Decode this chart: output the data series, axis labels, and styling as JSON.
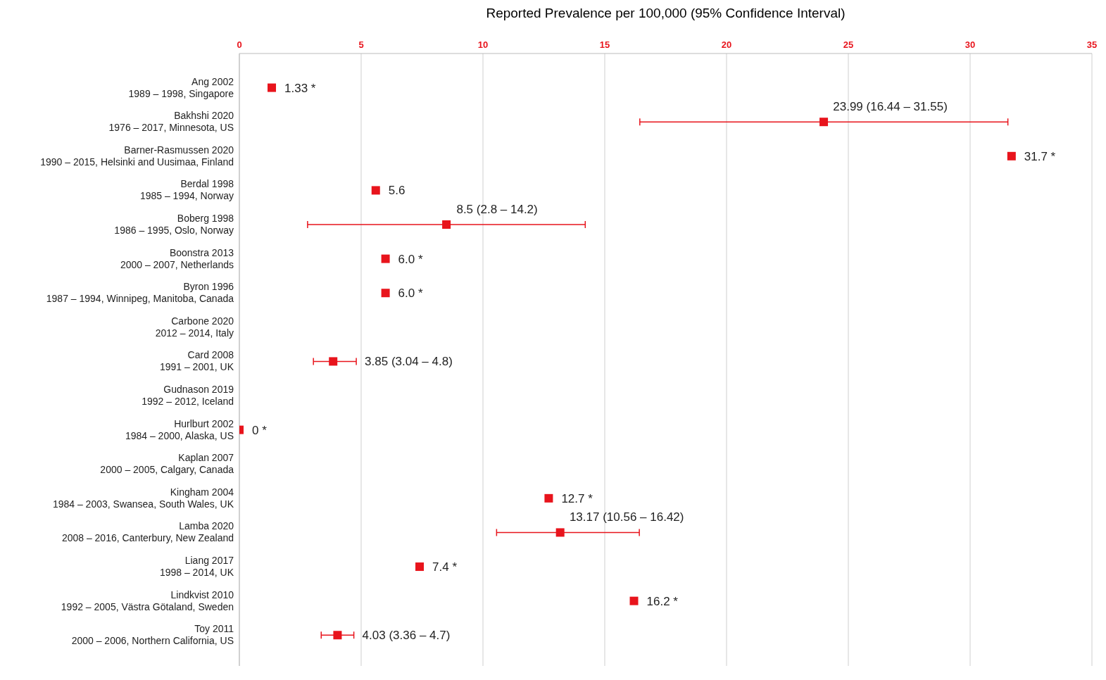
{
  "chart_data": {
    "type": "scatter",
    "orientation": "horizontal",
    "title": "Reported Prevalence per 100,000 (95% Confidence Interval)",
    "categories": [
      "Ang 2002\n1989 – 1998, Singapore",
      "Bakhshi 2020\n1976 – 2017, Minnesota, US",
      "Barner-Rasmussen 2020\n1990 – 2015, Helsinki and Uusimaa, Finland",
      "Berdal 1998\n1985 – 1994, Norway",
      "Boberg 1998\n1986 – 1995, Oslo, Norway",
      "Boonstra 2013\n2000 – 2007, Netherlands",
      "Byron 1996\n1987 – 1994, Winnipeg, Manitoba, Canada",
      "Carbone 2020\n2012 – 2014, Italy",
      "Card 2008\n1991 – 2001, UK",
      "Gudnason 2019\n1992 – 2012, Iceland",
      "Hurlburt 2002\n1984 – 2000, Alaska, US",
      "Kaplan 2007\n2000 – 2005, Calgary, Canada",
      "Kingham 2004\n1984 – 2003, Swansea, South Wales, UK",
      "Lamba 2020\n2008 – 2016, Canterbury, New Zealand",
      "Liang 2017\n1998 – 2014, UK",
      "Lindkvist 2010\n1992 – 2005, Västra Götaland, Sweden",
      "Toy 2011\n2000 – 2006, Northern California, US"
    ],
    "values": [
      1.33,
      23.99,
      31.7,
      5.6,
      8.5,
      6.0,
      6.0,
      null,
      3.85,
      null,
      0,
      null,
      12.7,
      13.17,
      7.4,
      16.2,
      4.03
    ],
    "errors": [
      null,
      [
        16.44,
        31.55
      ],
      null,
      null,
      [
        2.8,
        14.2
      ],
      null,
      null,
      null,
      [
        3.04,
        4.8
      ],
      null,
      null,
      null,
      null,
      [
        10.56,
        16.42
      ],
      null,
      null,
      [
        3.36,
        4.7
      ]
    ],
    "value_labels": [
      "1.33 *",
      "23.99 (16.44 – 31.55)",
      "31.7 *",
      "5.6",
      "8.5 (2.8 – 14.2)",
      "6.0 *",
      "6.0 *",
      null,
      "3.85 (3.04 – 4.8)",
      null,
      "0 *",
      null,
      "12.7 *",
      "13.17 (10.56 – 16.42)",
      "7.4 *",
      "16.2 *",
      "4.03 (3.36 – 4.7)"
    ],
    "color": "#e8141c",
    "marker": "square",
    "grid": "x",
    "xlim": [
      0,
      35
    ],
    "xticks": [
      0,
      5,
      10,
      15,
      20,
      25,
      30,
      35
    ]
  }
}
